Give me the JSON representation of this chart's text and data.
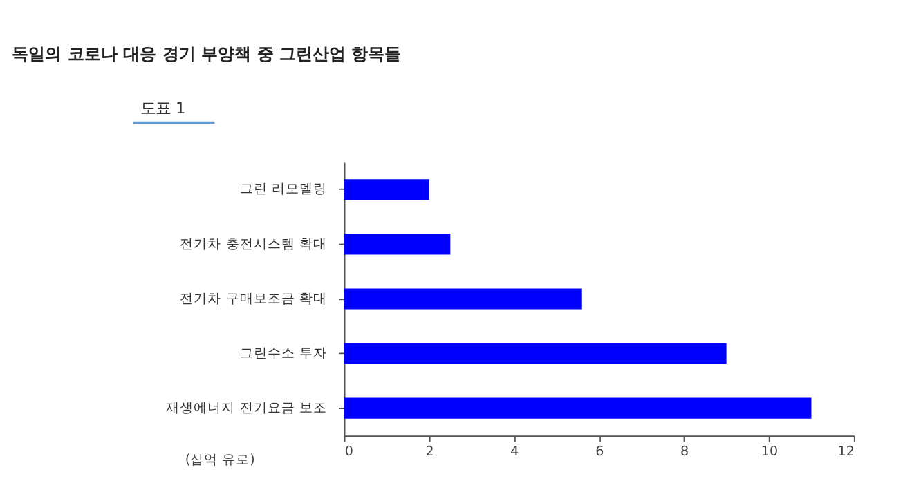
{
  "chart_data": {
    "type": "bar",
    "orientation": "horizontal",
    "title": "독일의 코로나 대응 경기 부양책 중 그린산업 항목들",
    "annotations": [
      "도표 1"
    ],
    "xlabel": "(십억 유로)",
    "categories": [
      "그린 리모델링",
      "전기차 충전시스템 확대",
      "전기차 구매보조금 확대",
      "그린수소 투자",
      "재생에너지 전기요금 보조"
    ],
    "values": [
      2.0,
      2.5,
      5.6,
      9.0,
      11.0
    ],
    "color": "#0000ff",
    "xlim": [
      0,
      12
    ],
    "xticks": [
      0,
      2,
      4,
      6,
      8,
      10,
      12
    ],
    "grid": false
  }
}
